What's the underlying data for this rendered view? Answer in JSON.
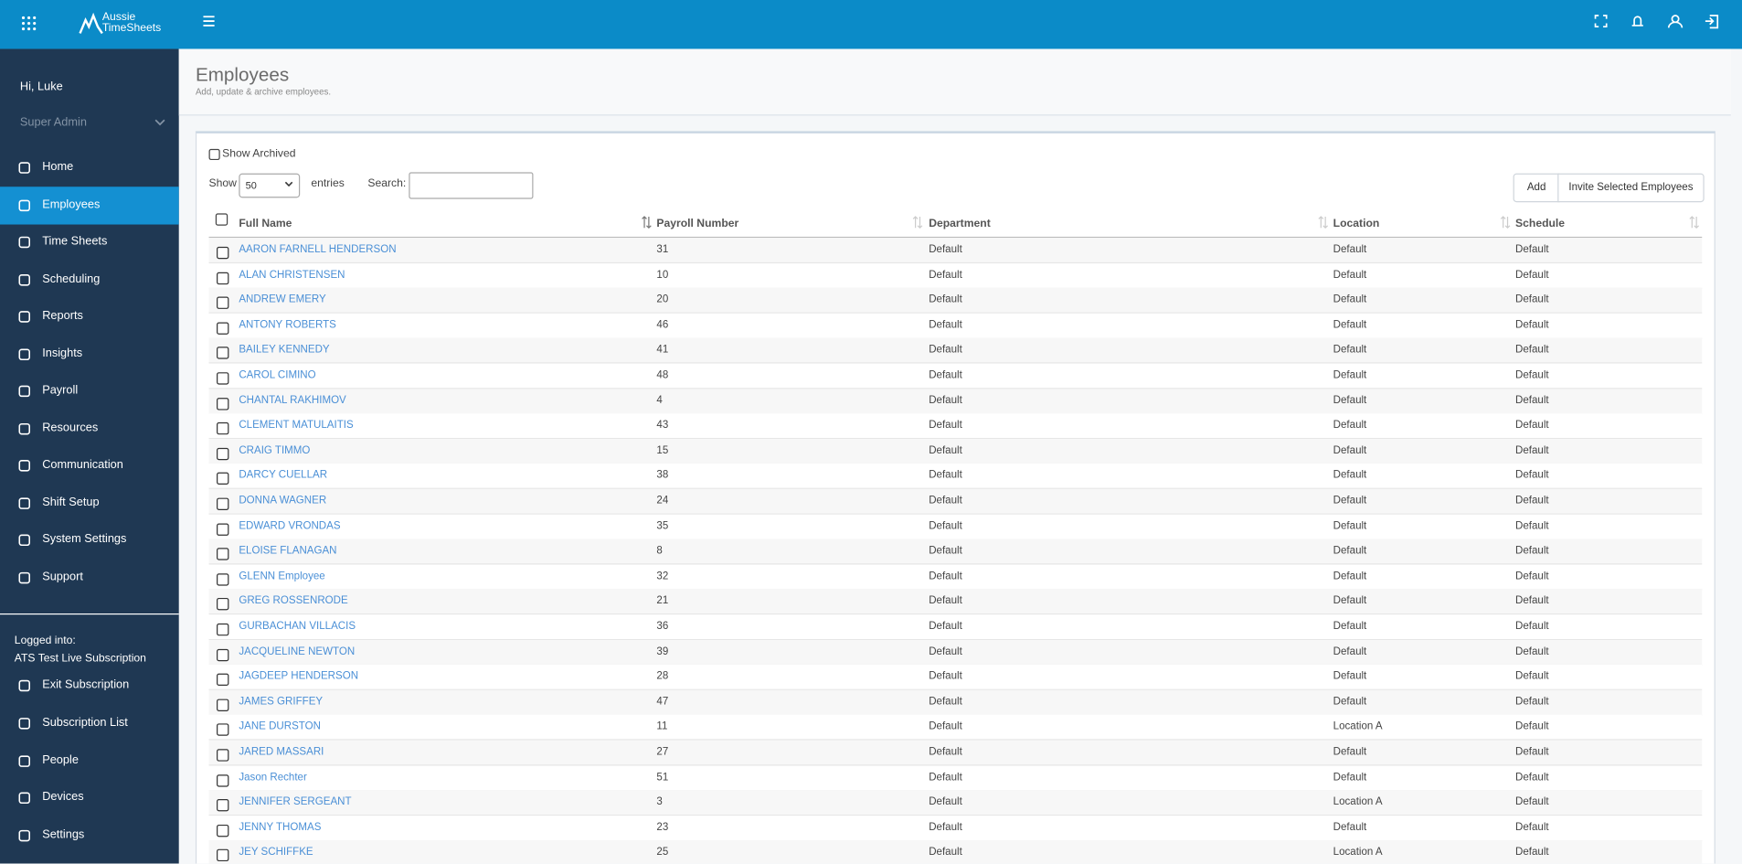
{
  "header": {
    "logo": "Aussie TimeSheets"
  },
  "sidebar": {
    "greeting": "Hi, Luke",
    "role": "Super Admin",
    "nav": [
      "Home",
      "Employees",
      "Time Sheets",
      "Scheduling",
      "Reports",
      "Insights",
      "Payroll",
      "Resources",
      "Communication",
      "Shift Setup",
      "System Settings",
      "Support"
    ],
    "active": 1,
    "logged_label": "Logged into:",
    "subscription": "ATS Test Live Subscription",
    "bottom_nav": [
      "Exit Subscription",
      "Subscription List",
      "People",
      "Devices",
      "Settings"
    ]
  },
  "page": {
    "title": "Employees",
    "subtitle": "Add, update & archive employees."
  },
  "controls": {
    "show_archived": "Show Archived",
    "show": "Show",
    "entries_value": "50",
    "entries": "entries",
    "search": "Search:",
    "add": "Add",
    "invite": "Invite Selected Employees"
  },
  "table": {
    "columns": [
      "Full Name",
      "Payroll Number",
      "Department",
      "Location",
      "Schedule"
    ],
    "rows": [
      [
        "AARON FARNELL HENDERSON",
        31,
        "Default",
        "Default",
        "Default"
      ],
      [
        "ALAN CHRISTENSEN",
        10,
        "Default",
        "Default",
        "Default"
      ],
      [
        "ANDREW EMERY",
        20,
        "Default",
        "Default",
        "Default"
      ],
      [
        "ANTONY ROBERTS",
        46,
        "Default",
        "Default",
        "Default"
      ],
      [
        "BAILEY KENNEDY",
        41,
        "Default",
        "Default",
        "Default"
      ],
      [
        "CAROL CIMINO",
        48,
        "Default",
        "Default",
        "Default"
      ],
      [
        "CHANTAL RAKHIMOV",
        4,
        "Default",
        "Default",
        "Default"
      ],
      [
        "CLEMENT MATULAITIS",
        43,
        "Default",
        "Default",
        "Default"
      ],
      [
        "CRAIG TIMMO",
        15,
        "Default",
        "Default",
        "Default"
      ],
      [
        "DARCY CUELLAR",
        38,
        "Default",
        "Default",
        "Default"
      ],
      [
        "DONNA WAGNER",
        24,
        "Default",
        "Default",
        "Default"
      ],
      [
        "EDWARD VRONDAS",
        35,
        "Default",
        "Default",
        "Default"
      ],
      [
        "ELOISE FLANAGAN",
        8,
        "Default",
        "Default",
        "Default"
      ],
      [
        "GLENN Employee",
        32,
        "Default",
        "Default",
        "Default"
      ],
      [
        "GREG ROSSENRODE",
        21,
        "Default",
        "Default",
        "Default"
      ],
      [
        "GURBACHAN VILLACIS",
        36,
        "Default",
        "Default",
        "Default"
      ],
      [
        "JACQUELINE NEWTON",
        39,
        "Default",
        "Default",
        "Default"
      ],
      [
        "JAGDEEP HENDERSON",
        28,
        "Default",
        "Default",
        "Default"
      ],
      [
        "JAMES GRIFFEY",
        47,
        "Default",
        "Default",
        "Default"
      ],
      [
        "JANE DURSTON",
        11,
        "Default",
        "Location A",
        "Default"
      ],
      [
        "JARED MASSARI",
        27,
        "Default",
        "Default",
        "Default"
      ],
      [
        "Jason Rechter",
        51,
        "Default",
        "Default",
        "Default"
      ],
      [
        "JENNIFER SERGEANT",
        3,
        "Default",
        "Location A",
        "Default"
      ],
      [
        "JENNY THOMAS",
        23,
        "Default",
        "Default",
        "Default"
      ],
      [
        "JEY SCHIFFKE",
        25,
        "Default",
        "Location A",
        "Default"
      ]
    ]
  }
}
